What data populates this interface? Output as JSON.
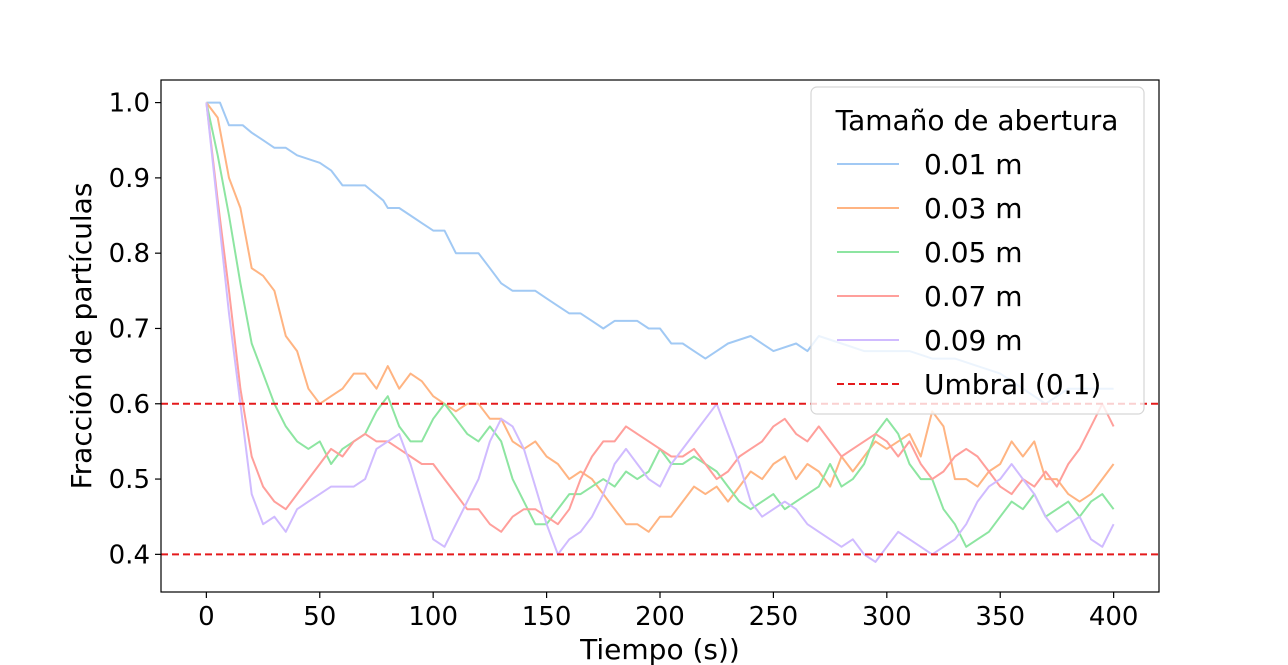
{
  "chart_data": {
    "type": "line",
    "xlabel": "Tiempo (s))",
    "ylabel": "Fracción de partículas",
    "xlim": [
      -20,
      420
    ],
    "ylim": [
      0.35,
      1.03
    ],
    "xticks": [
      0,
      50,
      100,
      150,
      200,
      250,
      300,
      350,
      400
    ],
    "yticks": [
      0.4,
      0.5,
      0.6,
      0.7,
      0.8,
      0.9,
      1.0
    ],
    "xtick_labels": [
      "0",
      "50",
      "100",
      "150",
      "200",
      "250",
      "300",
      "350",
      "400"
    ],
    "ytick_labels": [
      "0.4",
      "0.5",
      "0.6",
      "0.7",
      "0.8",
      "0.9",
      "1.0"
    ],
    "grid": false,
    "legend": {
      "title": "Tamaño de abertura",
      "placement": "top-right"
    },
    "series": [
      {
        "name": "0.01 m",
        "color": "#a1c9f4",
        "x": [
          0,
          6,
          10,
          16,
          20,
          25,
          30,
          35,
          40,
          50,
          55,
          60,
          70,
          78,
          80,
          85,
          90,
          95,
          100,
          105,
          110,
          115,
          120,
          125,
          130,
          135,
          140,
          145,
          150,
          155,
          160,
          165,
          170,
          175,
          180,
          190,
          195,
          200,
          205,
          210,
          215,
          220,
          225,
          230,
          240,
          250,
          260,
          265,
          270,
          280,
          290,
          300,
          310,
          320,
          330,
          340,
          350,
          360,
          370,
          380,
          390,
          400
        ],
        "y": [
          1.0,
          1.0,
          0.97,
          0.97,
          0.96,
          0.95,
          0.94,
          0.94,
          0.93,
          0.92,
          0.91,
          0.89,
          0.89,
          0.87,
          0.86,
          0.86,
          0.85,
          0.84,
          0.83,
          0.83,
          0.8,
          0.8,
          0.8,
          0.78,
          0.76,
          0.75,
          0.75,
          0.75,
          0.74,
          0.73,
          0.72,
          0.72,
          0.71,
          0.7,
          0.71,
          0.71,
          0.7,
          0.7,
          0.68,
          0.68,
          0.67,
          0.66,
          0.67,
          0.68,
          0.69,
          0.67,
          0.68,
          0.67,
          0.69,
          0.68,
          0.67,
          0.67,
          0.67,
          0.66,
          0.66,
          0.65,
          0.64,
          0.62,
          0.6,
          0.62,
          0.62,
          0.62
        ]
      },
      {
        "name": "0.03 m",
        "color": "#ffb482",
        "x": [
          0,
          5,
          10,
          15,
          20,
          25,
          30,
          35,
          40,
          45,
          50,
          55,
          60,
          65,
          70,
          75,
          80,
          85,
          90,
          95,
          100,
          105,
          110,
          115,
          120,
          125,
          130,
          135,
          140,
          145,
          150,
          155,
          160,
          165,
          170,
          175,
          180,
          185,
          190,
          195,
          200,
          205,
          210,
          215,
          220,
          225,
          230,
          235,
          240,
          245,
          250,
          255,
          260,
          265,
          270,
          275,
          280,
          285,
          290,
          295,
          300,
          305,
          310,
          315,
          320,
          325,
          330,
          335,
          340,
          345,
          350,
          355,
          360,
          365,
          370,
          375,
          380,
          385,
          390,
          395,
          400
        ],
        "y": [
          1.0,
          0.98,
          0.9,
          0.86,
          0.78,
          0.77,
          0.75,
          0.69,
          0.67,
          0.62,
          0.6,
          0.61,
          0.62,
          0.64,
          0.64,
          0.62,
          0.65,
          0.62,
          0.64,
          0.63,
          0.61,
          0.6,
          0.59,
          0.6,
          0.6,
          0.58,
          0.58,
          0.55,
          0.54,
          0.55,
          0.53,
          0.52,
          0.5,
          0.51,
          0.5,
          0.48,
          0.46,
          0.44,
          0.44,
          0.43,
          0.45,
          0.45,
          0.47,
          0.49,
          0.48,
          0.49,
          0.47,
          0.49,
          0.51,
          0.5,
          0.52,
          0.53,
          0.5,
          0.52,
          0.51,
          0.49,
          0.53,
          0.51,
          0.53,
          0.55,
          0.54,
          0.55,
          0.56,
          0.53,
          0.59,
          0.57,
          0.5,
          0.5,
          0.49,
          0.51,
          0.52,
          0.55,
          0.53,
          0.55,
          0.5,
          0.5,
          0.48,
          0.47,
          0.48,
          0.5,
          0.52
        ]
      },
      {
        "name": "0.05 m",
        "color": "#8de5a1",
        "x": [
          0,
          5,
          10,
          15,
          20,
          25,
          30,
          35,
          40,
          45,
          50,
          55,
          60,
          65,
          70,
          75,
          80,
          85,
          90,
          95,
          100,
          105,
          110,
          115,
          120,
          125,
          130,
          135,
          140,
          145,
          150,
          155,
          160,
          165,
          170,
          175,
          180,
          185,
          190,
          195,
          200,
          205,
          210,
          215,
          220,
          225,
          230,
          235,
          240,
          245,
          250,
          255,
          260,
          265,
          270,
          275,
          280,
          285,
          290,
          295,
          300,
          305,
          310,
          315,
          320,
          325,
          330,
          335,
          340,
          345,
          350,
          355,
          360,
          365,
          370,
          375,
          380,
          385,
          390,
          395,
          400
        ],
        "y": [
          1.0,
          0.93,
          0.85,
          0.76,
          0.68,
          0.64,
          0.6,
          0.57,
          0.55,
          0.54,
          0.55,
          0.52,
          0.54,
          0.55,
          0.56,
          0.59,
          0.61,
          0.57,
          0.55,
          0.55,
          0.58,
          0.6,
          0.58,
          0.56,
          0.55,
          0.57,
          0.55,
          0.5,
          0.47,
          0.44,
          0.44,
          0.46,
          0.48,
          0.48,
          0.49,
          0.5,
          0.49,
          0.51,
          0.5,
          0.51,
          0.54,
          0.52,
          0.52,
          0.53,
          0.52,
          0.51,
          0.49,
          0.47,
          0.46,
          0.47,
          0.48,
          0.46,
          0.47,
          0.48,
          0.49,
          0.52,
          0.49,
          0.5,
          0.52,
          0.56,
          0.58,
          0.56,
          0.52,
          0.5,
          0.5,
          0.46,
          0.44,
          0.41,
          0.42,
          0.43,
          0.45,
          0.47,
          0.46,
          0.48,
          0.45,
          0.46,
          0.47,
          0.45,
          0.47,
          0.48,
          0.46
        ]
      },
      {
        "name": "0.07 m",
        "color": "#ff9f9b",
        "x": [
          0,
          5,
          10,
          15,
          20,
          25,
          30,
          35,
          40,
          45,
          50,
          55,
          60,
          65,
          70,
          75,
          80,
          85,
          90,
          95,
          100,
          105,
          110,
          115,
          120,
          125,
          130,
          135,
          140,
          145,
          150,
          155,
          160,
          165,
          170,
          175,
          180,
          185,
          190,
          195,
          200,
          205,
          210,
          215,
          220,
          225,
          230,
          235,
          240,
          245,
          250,
          255,
          260,
          265,
          270,
          275,
          280,
          285,
          290,
          295,
          300,
          305,
          310,
          315,
          320,
          325,
          330,
          335,
          340,
          345,
          350,
          355,
          360,
          365,
          370,
          375,
          380,
          385,
          390,
          395,
          400
        ],
        "y": [
          1.0,
          0.87,
          0.75,
          0.62,
          0.53,
          0.49,
          0.47,
          0.46,
          0.48,
          0.5,
          0.52,
          0.54,
          0.53,
          0.55,
          0.56,
          0.55,
          0.55,
          0.54,
          0.53,
          0.52,
          0.52,
          0.5,
          0.48,
          0.46,
          0.46,
          0.44,
          0.43,
          0.45,
          0.46,
          0.46,
          0.45,
          0.44,
          0.46,
          0.5,
          0.53,
          0.55,
          0.55,
          0.57,
          0.56,
          0.55,
          0.54,
          0.53,
          0.53,
          0.54,
          0.52,
          0.5,
          0.51,
          0.53,
          0.54,
          0.55,
          0.57,
          0.58,
          0.56,
          0.55,
          0.57,
          0.55,
          0.53,
          0.54,
          0.55,
          0.56,
          0.55,
          0.53,
          0.55,
          0.52,
          0.5,
          0.51,
          0.53,
          0.54,
          0.53,
          0.51,
          0.49,
          0.48,
          0.5,
          0.49,
          0.51,
          0.49,
          0.52,
          0.54,
          0.57,
          0.6,
          0.57
        ]
      },
      {
        "name": "0.09 m",
        "color": "#d0bbff",
        "x": [
          0,
          5,
          10,
          15,
          20,
          25,
          30,
          35,
          40,
          45,
          50,
          55,
          60,
          65,
          70,
          75,
          80,
          85,
          90,
          95,
          100,
          105,
          110,
          115,
          120,
          125,
          130,
          135,
          140,
          145,
          150,
          155,
          160,
          165,
          170,
          175,
          180,
          185,
          190,
          195,
          200,
          205,
          210,
          215,
          220,
          225,
          230,
          235,
          240,
          245,
          250,
          255,
          260,
          265,
          270,
          275,
          280,
          285,
          290,
          295,
          300,
          305,
          310,
          315,
          320,
          325,
          330,
          335,
          340,
          345,
          350,
          355,
          360,
          365,
          370,
          375,
          380,
          385,
          390,
          395,
          400
        ],
        "y": [
          1.0,
          0.86,
          0.72,
          0.6,
          0.48,
          0.44,
          0.45,
          0.43,
          0.46,
          0.47,
          0.48,
          0.49,
          0.49,
          0.49,
          0.5,
          0.54,
          0.55,
          0.56,
          0.52,
          0.47,
          0.42,
          0.41,
          0.44,
          0.47,
          0.5,
          0.55,
          0.58,
          0.57,
          0.54,
          0.49,
          0.44,
          0.4,
          0.42,
          0.43,
          0.45,
          0.48,
          0.52,
          0.54,
          0.52,
          0.5,
          0.49,
          0.52,
          0.54,
          0.56,
          0.58,
          0.6,
          0.56,
          0.52,
          0.47,
          0.45,
          0.46,
          0.47,
          0.46,
          0.44,
          0.43,
          0.42,
          0.41,
          0.42,
          0.4,
          0.39,
          0.41,
          0.43,
          0.42,
          0.41,
          0.4,
          0.41,
          0.42,
          0.44,
          0.47,
          0.49,
          0.5,
          0.52,
          0.5,
          0.48,
          0.45,
          0.43,
          0.44,
          0.45,
          0.42,
          0.41,
          0.44
        ]
      },
      {
        "name": "Umbral (0.1)",
        "color": "#e41a1c",
        "style": "dashed",
        "hlines": [
          0.6,
          0.4
        ]
      }
    ]
  }
}
